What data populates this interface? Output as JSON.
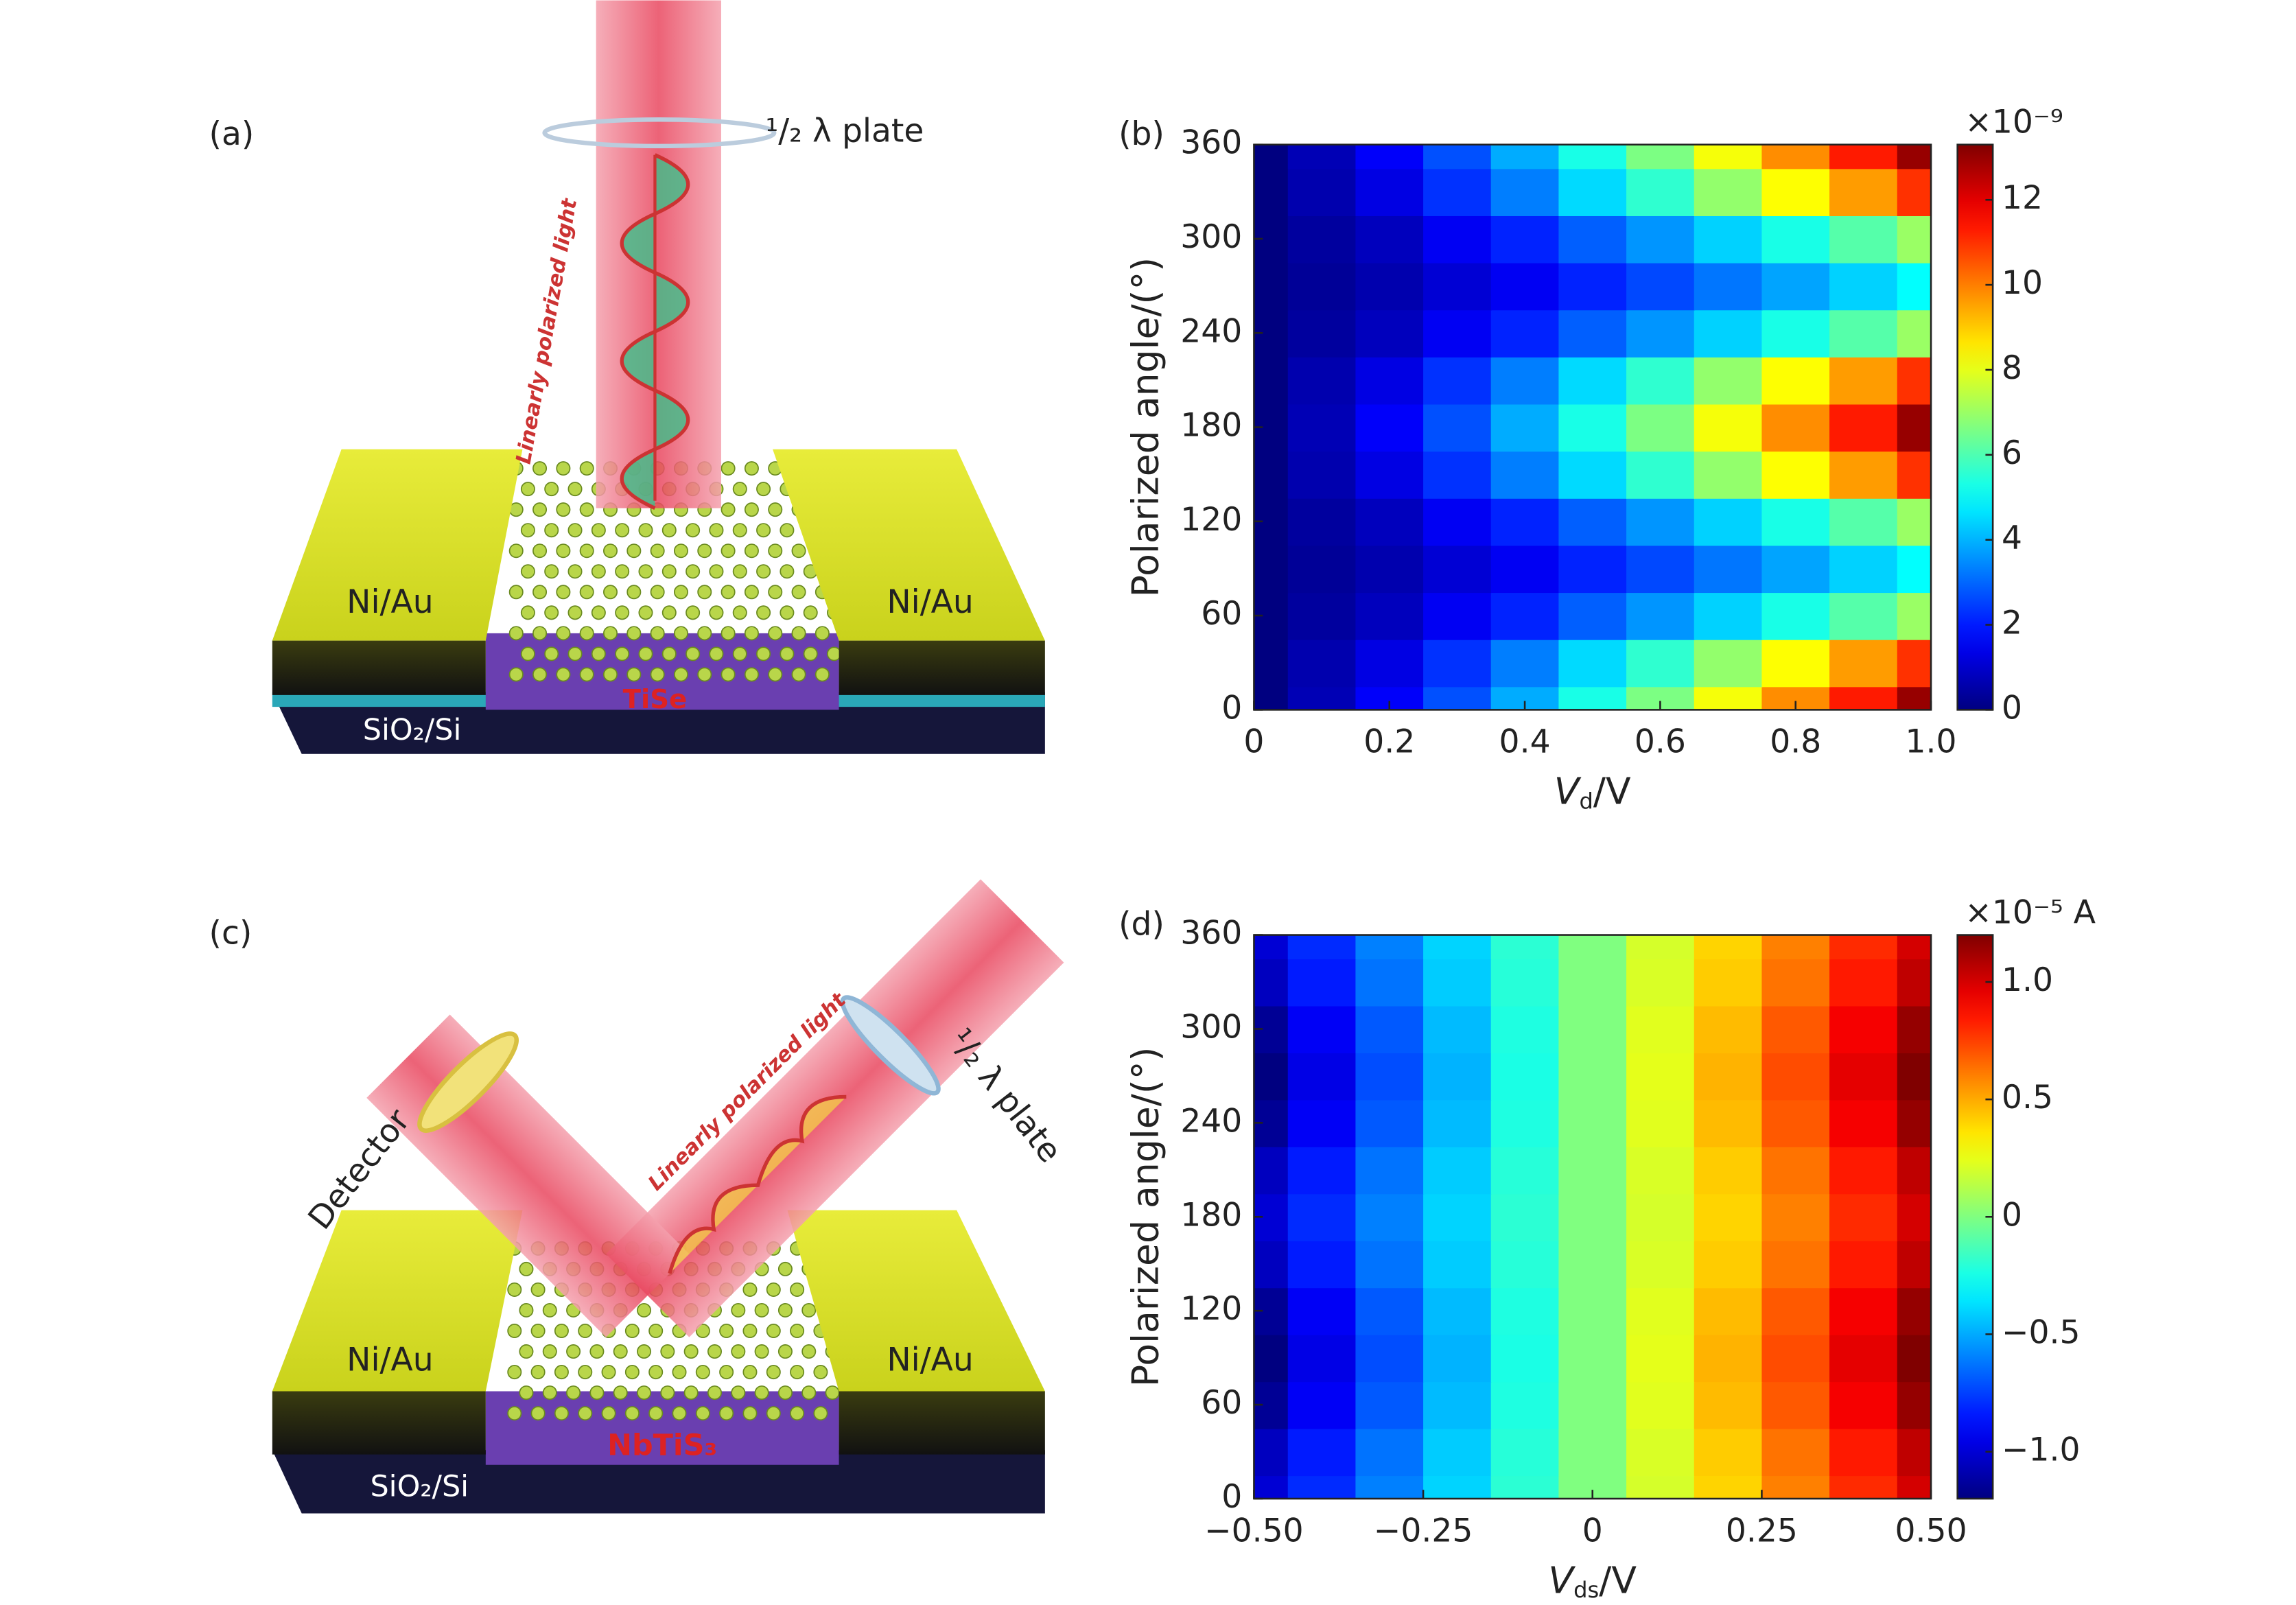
{
  "diagram_a": {
    "label": "(a)",
    "plate": "¹/₂ λ plate",
    "light": "Linearly polarized light",
    "electrode_left": "Ni/Au",
    "electrode_right": "Ni/Au",
    "material": "TiSe",
    "substrate": "SiO₂/Si"
  },
  "diagram_c": {
    "label": "(c)",
    "detector": "Detector",
    "plate": "¹/₂ λ plate",
    "light": "Linearly polarized light",
    "electrode_left": "Ni/Au",
    "electrode_right": "Ni/Au",
    "material": "NbTiS₃",
    "substrate": "SiO₂/Si"
  },
  "chart_data": [
    {
      "type": "heatmap",
      "panel_label": "(b)",
      "colormap": "jet",
      "x_label": {
        "symbol": "V",
        "sub": "d",
        "unit": "/V"
      },
      "y_label": "Polarized angle/(°)",
      "x": [
        0,
        0.1,
        0.2,
        0.3,
        0.4,
        0.5,
        0.6,
        0.7,
        0.8,
        0.9,
        1.0
      ],
      "y": [
        0,
        30,
        60,
        90,
        120,
        150,
        180,
        210,
        240,
        270,
        300,
        330,
        360
      ],
      "values": [
        [
          0,
          0.7,
          1.6,
          2.7,
          3.9,
          5.3,
          6.6,
          8.2,
          9.8,
          11.3,
          13
        ],
        [
          0,
          0.6,
          1.3,
          2.3,
          3.3,
          4.5,
          5.6,
          6.9,
          8.3,
          9.6,
          11
        ],
        [
          0,
          0.4,
          0.8,
          1.5,
          2.1,
          2.9,
          3.6,
          4.4,
          5.3,
          6.1,
          7
        ],
        [
          0,
          0.3,
          0.6,
          1.1,
          1.5,
          2.1,
          2.6,
          3.2,
          3.8,
          4.4,
          5
        ],
        [
          0,
          0.4,
          0.8,
          1.5,
          2.1,
          2.9,
          3.6,
          4.4,
          5.3,
          6.1,
          7
        ],
        [
          0,
          0.6,
          1.3,
          2.3,
          3.3,
          4.5,
          5.6,
          6.9,
          8.3,
          9.6,
          11
        ],
        [
          0,
          0.7,
          1.6,
          2.7,
          3.9,
          5.3,
          6.6,
          8.2,
          9.8,
          11.3,
          13
        ],
        [
          0,
          0.6,
          1.3,
          2.3,
          3.3,
          4.5,
          5.6,
          6.9,
          8.3,
          9.6,
          11
        ],
        [
          0,
          0.4,
          0.8,
          1.5,
          2.1,
          2.9,
          3.6,
          4.4,
          5.3,
          6.1,
          7
        ],
        [
          0,
          0.3,
          0.6,
          1.1,
          1.5,
          2.1,
          2.6,
          3.2,
          3.8,
          4.4,
          5
        ],
        [
          0,
          0.4,
          0.8,
          1.5,
          2.1,
          2.9,
          3.6,
          4.4,
          5.3,
          6.1,
          7
        ],
        [
          0,
          0.6,
          1.3,
          2.3,
          3.3,
          4.5,
          5.6,
          6.9,
          8.3,
          9.6,
          11
        ],
        [
          0,
          0.7,
          1.6,
          2.7,
          3.9,
          5.3,
          6.6,
          8.2,
          9.8,
          11.3,
          13
        ]
      ],
      "xlim": [
        0,
        1
      ],
      "ylim": [
        0,
        360
      ],
      "xticks": [
        0,
        0.2,
        0.4,
        0.6,
        0.8,
        {
          "value": 1,
          "label": "1.0"
        }
      ],
      "yticks": [
        0,
        60,
        120,
        180,
        240,
        300,
        360
      ],
      "colorbar": {
        "lim": [
          0,
          13.3
        ],
        "ticks": [
          0,
          2,
          4,
          6,
          8,
          10,
          12
        ],
        "unit_label": "×10⁻⁹"
      }
    },
    {
      "type": "heatmap",
      "panel_label": "(d)",
      "colormap": "jet",
      "x_label": {
        "symbol": "V",
        "sub": "ds",
        "unit": "/V"
      },
      "y_label": "Polarized angle/(°)",
      "x": [
        -0.5,
        -0.4,
        -0.3,
        -0.2,
        -0.1,
        0,
        0.1,
        0.2,
        0.3,
        0.4,
        0.5
      ],
      "y": [
        0,
        30,
        60,
        90,
        120,
        150,
        180,
        210,
        240,
        270,
        300,
        330,
        360
      ],
      "values": [
        [
          -1,
          -0.8,
          -0.6,
          -0.4,
          -0.2,
          0,
          0.2,
          0.4,
          0.6,
          0.8,
          1
        ],
        [
          -1.05,
          -0.84,
          -0.63,
          -0.42,
          -0.21,
          0,
          0.21,
          0.42,
          0.63,
          0.84,
          1.05
        ],
        [
          -1.15,
          -0.92,
          -0.69,
          -0.46,
          -0.23,
          0,
          0.23,
          0.46,
          0.69,
          0.92,
          1.15
        ],
        [
          -1.2,
          -0.96,
          -0.72,
          -0.48,
          -0.24,
          0,
          0.24,
          0.48,
          0.72,
          0.96,
          1.2
        ],
        [
          -1.15,
          -0.92,
          -0.69,
          -0.46,
          -0.23,
          0,
          0.23,
          0.46,
          0.69,
          0.92,
          1.15
        ],
        [
          -1.05,
          -0.84,
          -0.63,
          -0.42,
          -0.21,
          0,
          0.21,
          0.42,
          0.63,
          0.84,
          1.05
        ],
        [
          -1,
          -0.8,
          -0.6,
          -0.4,
          -0.2,
          0,
          0.2,
          0.4,
          0.6,
          0.8,
          1
        ],
        [
          -1.05,
          -0.84,
          -0.63,
          -0.42,
          -0.21,
          0,
          0.21,
          0.42,
          0.63,
          0.84,
          1.05
        ],
        [
          -1.15,
          -0.92,
          -0.69,
          -0.46,
          -0.23,
          0,
          0.23,
          0.46,
          0.69,
          0.92,
          1.15
        ],
        [
          -1.2,
          -0.96,
          -0.72,
          -0.48,
          -0.24,
          0,
          0.24,
          0.48,
          0.72,
          0.96,
          1.2
        ],
        [
          -1.15,
          -0.92,
          -0.69,
          -0.46,
          -0.23,
          0,
          0.23,
          0.46,
          0.69,
          0.92,
          1.15
        ],
        [
          -1.05,
          -0.84,
          -0.63,
          -0.42,
          -0.21,
          0,
          0.21,
          0.42,
          0.63,
          0.84,
          1.05
        ],
        [
          -1,
          -0.8,
          -0.6,
          -0.4,
          -0.2,
          0,
          0.2,
          0.4,
          0.6,
          0.8,
          1
        ]
      ],
      "xlim": [
        -0.5,
        0.5
      ],
      "ylim": [
        0,
        360
      ],
      "xticks": [
        {
          "value": -0.5,
          "label": "−0.50"
        },
        {
          "value": -0.25,
          "label": "−0.25"
        },
        0,
        {
          "value": 0.25,
          "label": "0.25"
        },
        {
          "value": 0.5,
          "label": "0.50"
        }
      ],
      "yticks": [
        0,
        60,
        120,
        180,
        240,
        300,
        360
      ],
      "colorbar": {
        "lim": [
          -1.2,
          1.2
        ],
        "ticks": [
          {
            "value": -1,
            "label": "−1.0"
          },
          {
            "value": -0.5,
            "label": "−0.5"
          },
          0,
          {
            "value": 0.5,
            "label": "0.5"
          },
          {
            "value": 1,
            "label": "1.0"
          }
        ],
        "unit_label": "×10⁻⁵ A"
      }
    }
  ]
}
